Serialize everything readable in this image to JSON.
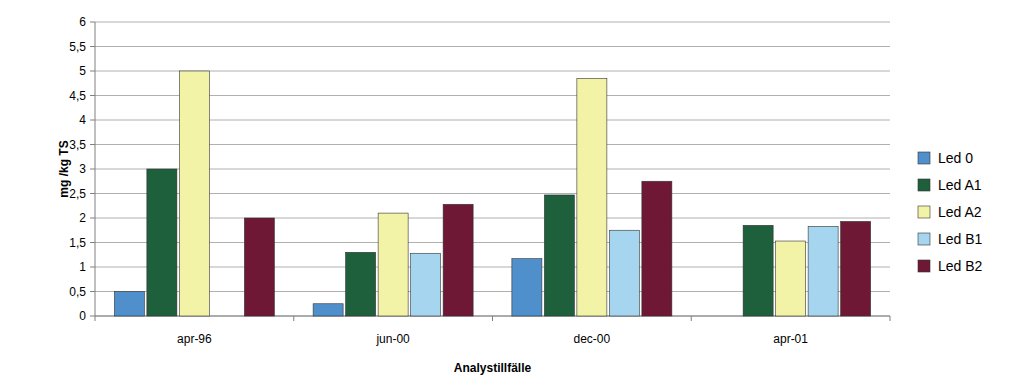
{
  "chart_data": {
    "type": "bar",
    "x_label": "Analystillfälle",
    "y_label": "mg /kg TS",
    "categories": [
      "apr-96",
      "jun-00",
      "dec-00",
      "apr-01"
    ],
    "series": [
      {
        "name": "Led 0",
        "color": "#4f8fcb",
        "values": [
          0.5,
          0.25,
          1.17,
          0
        ]
      },
      {
        "name": "Led A1",
        "color": "#1e5f3c",
        "values": [
          3.0,
          1.3,
          2.47,
          1.85
        ]
      },
      {
        "name": "Led A2",
        "color": "#f3f3a8",
        "values": [
          5.0,
          2.1,
          4.85,
          1.53
        ]
      },
      {
        "name": "Led B1",
        "color": "#a6d5f0",
        "values": [
          null,
          1.28,
          1.75,
          1.83
        ]
      },
      {
        "name": "Led B2",
        "color": "#6e1836",
        "values": [
          2.0,
          2.28,
          2.75,
          1.93
        ]
      }
    ],
    "ylim": [
      0,
      6
    ],
    "yticks": [
      0,
      {
        "value": 0.5,
        "label": "0,5"
      },
      1,
      {
        "value": 1.5,
        "label": "1,5"
      },
      2,
      {
        "value": 2.5,
        "label": "2,5"
      },
      3,
      {
        "value": 3.5,
        "label": "3,5"
      },
      4,
      {
        "value": 4.5,
        "label": "4,5"
      },
      5,
      {
        "value": 5.5,
        "label": "5,5"
      },
      6
    ],
    "grid": true,
    "legend": "right"
  }
}
